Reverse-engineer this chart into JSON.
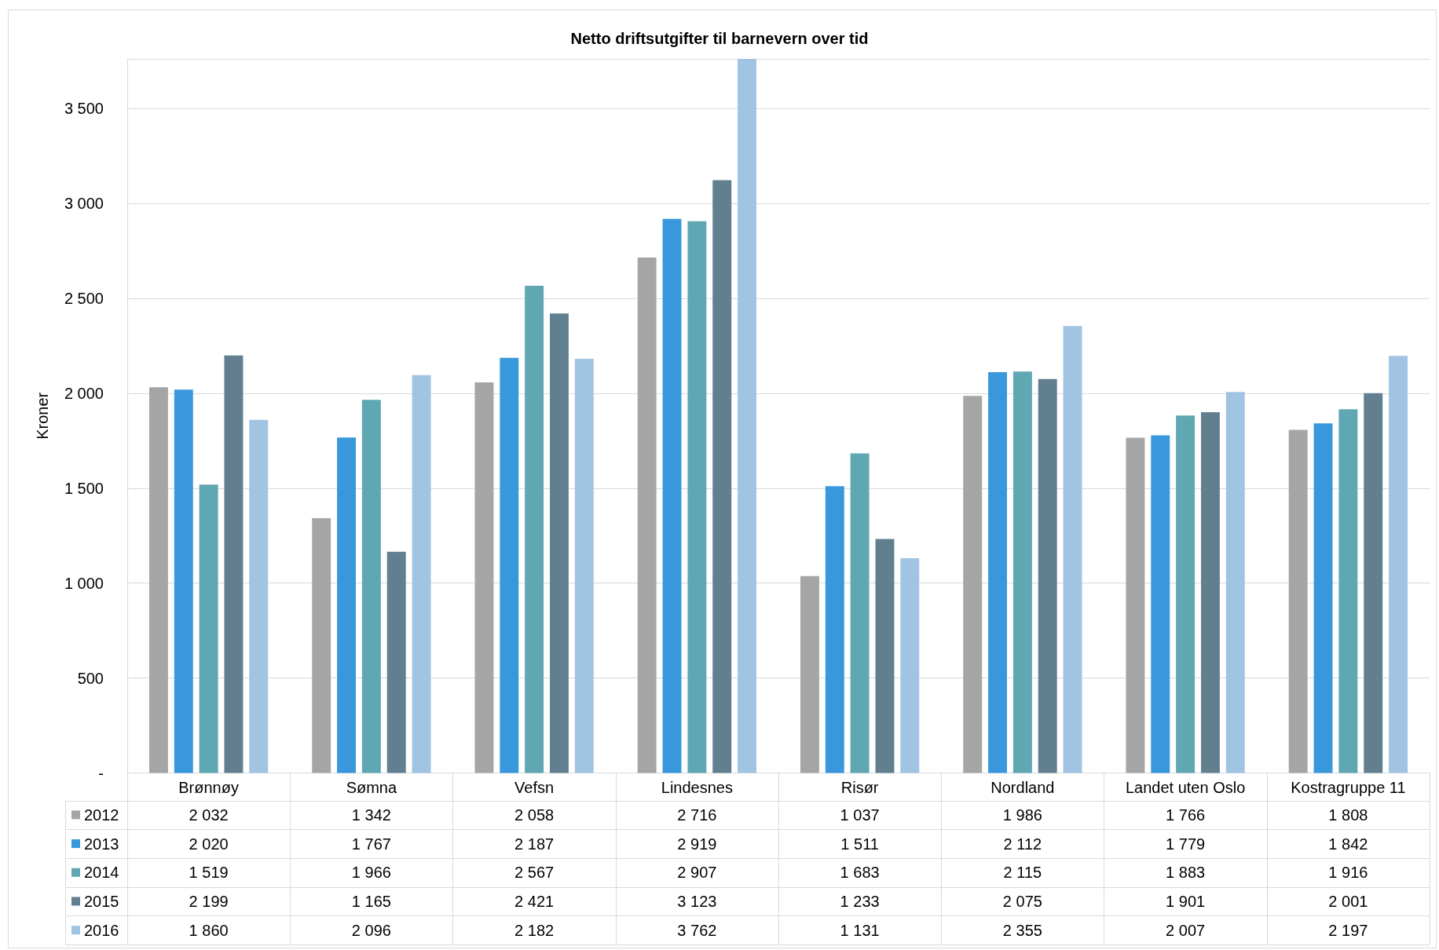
{
  "chart_data": {
    "type": "bar",
    "title": "Netto driftsutgifter til barnevern over tid",
    "ylabel": "Kroner",
    "categories": [
      "Brønnøy",
      "Sømna",
      "Vefsn",
      "Lindesnes",
      "Risør",
      "Nordland",
      "Landet uten Oslo",
      "Kostragruppe 11"
    ],
    "series": [
      {
        "name": "2012",
        "color": "#a5a5a5",
        "values": [
          2032,
          1342,
          2058,
          2716,
          1037,
          1986,
          1766,
          1808
        ],
        "value_labels": [
          "2 032",
          "1 342",
          "2 058",
          "2 716",
          "1 037",
          "1 986",
          "1 766",
          "1 808"
        ]
      },
      {
        "name": "2013",
        "color": "#3898db",
        "values": [
          2020,
          1767,
          2187,
          2919,
          1511,
          2112,
          1779,
          1842
        ],
        "value_labels": [
          "2 020",
          "1 767",
          "2 187",
          "2 919",
          "1 511",
          "2 112",
          "1 779",
          "1 842"
        ]
      },
      {
        "name": "2014",
        "color": "#5fa7b3",
        "values": [
          1519,
          1966,
          2567,
          2907,
          1683,
          2115,
          1883,
          1916
        ],
        "value_labels": [
          "1 519",
          "1 966",
          "2 567",
          "2 907",
          "1 683",
          "2 115",
          "1 883",
          "1 916"
        ]
      },
      {
        "name": "2015",
        "color": "#627f90",
        "values": [
          2199,
          1165,
          2421,
          3123,
          1233,
          2075,
          1901,
          2001
        ],
        "value_labels": [
          "2 199",
          "1 165",
          "2 421",
          "3 123",
          "1 233",
          "2 075",
          "1 901",
          "2 001"
        ]
      },
      {
        "name": "2016",
        "color": "#a1c4e3",
        "values": [
          1860,
          2096,
          2182,
          3762,
          1131,
          2355,
          2007,
          2197
        ],
        "value_labels": [
          "1 860",
          "2 096",
          "2 182",
          "3 762",
          "1 131",
          "2 355",
          "2 007",
          "2 197"
        ]
      }
    ],
    "ylim": [
      0,
      3762
    ],
    "yticks": [
      {
        "value": 0,
        "label": "-"
      },
      500,
      {
        "value": 1000,
        "label": "1 000"
      },
      {
        "value": 1500,
        "label": "1 500"
      },
      {
        "value": 2000,
        "label": "2 000"
      },
      {
        "value": 2500,
        "label": "2 500"
      },
      {
        "value": 3000,
        "label": "3 000"
      },
      {
        "value": 3500,
        "label": "3 500"
      }
    ],
    "grid": "y",
    "legend": "bottom left"
  }
}
